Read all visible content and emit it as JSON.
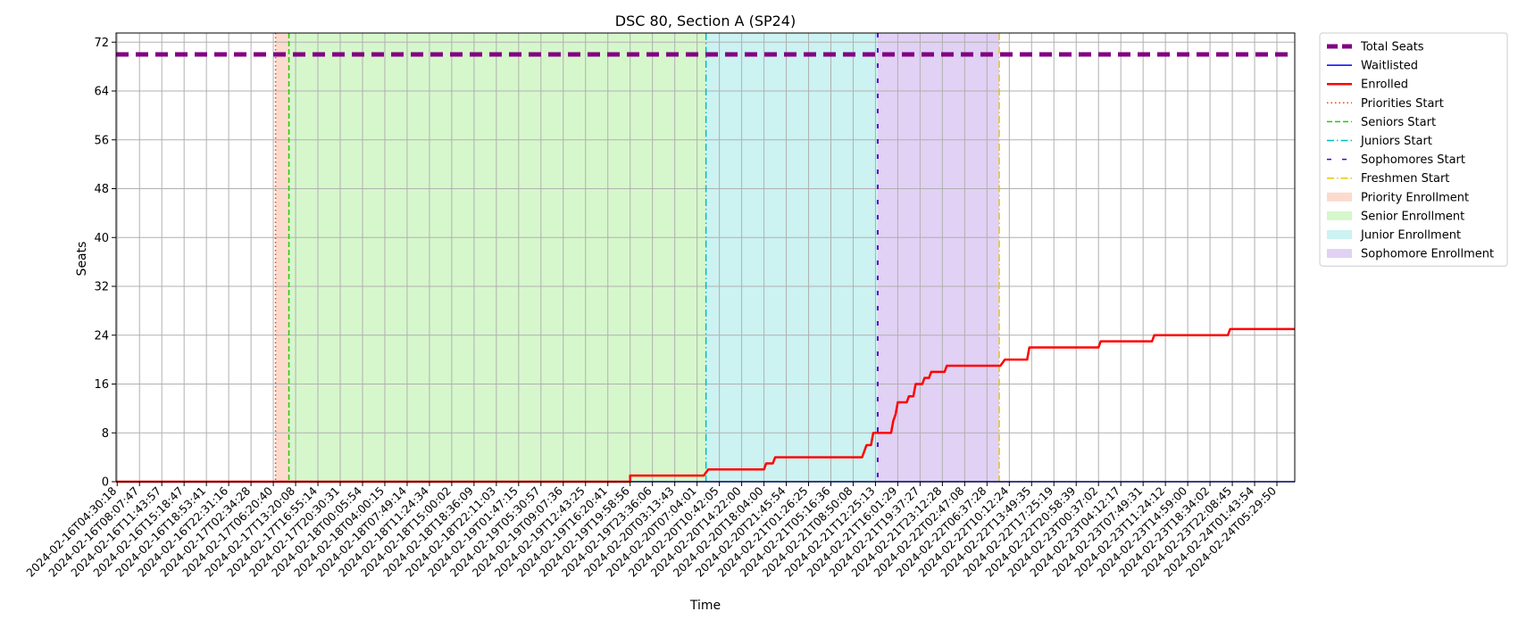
{
  "chart_data": {
    "type": "line",
    "title": "DSC 80, Section A (SP24)",
    "xlabel": "Time",
    "ylabel": "Seats",
    "ylim": [
      0,
      73.5
    ],
    "yticks": [
      0,
      8,
      16,
      24,
      32,
      40,
      48,
      56,
      64,
      72
    ],
    "grid": true,
    "legend_position": "outside-right",
    "x_tick_labels": [
      "2024-02-16T04:30:18",
      "2024-02-16T08:07:47",
      "2024-02-16T11:43:57",
      "2024-02-16T15:18:47",
      "2024-02-16T18:53:41",
      "2024-02-16T22:31:16",
      "2024-02-17T02:34:28",
      "2024-02-17T06:20:40",
      "2024-02-17T13:20:08",
      "2024-02-17T16:55:14",
      "2024-02-17T20:30:31",
      "2024-02-18T00:05:54",
      "2024-02-18T04:00:15",
      "2024-02-18T07:49:14",
      "2024-02-18T11:24:34",
      "2024-02-18T15:00:02",
      "2024-02-18T18:36:09",
      "2024-02-18T22:11:03",
      "2024-02-19T01:47:15",
      "2024-02-19T05:30:57",
      "2024-02-19T09:07:36",
      "2024-02-19T12:43:25",
      "2024-02-19T16:20:41",
      "2024-02-19T19:58:56",
      "2024-02-19T23:36:06",
      "2024-02-20T03:13:43",
      "2024-02-20T07:04:01",
      "2024-02-20T10:42:05",
      "2024-02-20T14:22:00",
      "2024-02-20T18:04:00",
      "2024-02-20T21:45:54",
      "2024-02-21T01:26:25",
      "2024-02-21T05:16:36",
      "2024-02-21T08:50:08",
      "2024-02-21T12:25:13",
      "2024-02-21T16:01:29",
      "2024-02-21T19:37:27",
      "2024-02-21T23:12:28",
      "2024-02-22T02:47:08",
      "2024-02-22T06:37:28",
      "2024-02-22T10:12:24",
      "2024-02-22T13:49:35",
      "2024-02-22T17:25:19",
      "2024-02-22T20:58:39",
      "2024-02-23T00:37:02",
      "2024-02-23T04:12:17",
      "2024-02-23T07:49:31",
      "2024-02-23T11:24:12",
      "2024-02-23T14:59:00",
      "2024-02-23T18:34:02",
      "2024-02-23T22:08:45",
      "2024-02-24T01:43:54",
      "2024-02-24T05:29:50"
    ],
    "x_extent": [
      -0.05,
      52.8
    ],
    "series": [
      {
        "name": "Total Seats",
        "color": "#800080",
        "style": "dashed-thick",
        "points": [
          [
            -0.05,
            70
          ],
          [
            52.8,
            70
          ]
        ]
      },
      {
        "name": "Waitlisted",
        "color": "#0000ff",
        "style": "solid",
        "points": [
          [
            -0.05,
            0
          ],
          [
            52.8,
            0
          ]
        ]
      },
      {
        "name": "Enrolled",
        "color": "#ff0000",
        "style": "solid",
        "points": [
          [
            -0.05,
            0
          ],
          [
            23.0,
            0
          ],
          [
            23.0,
            1
          ],
          [
            26.3,
            1
          ],
          [
            26.5,
            2
          ],
          [
            29.0,
            2
          ],
          [
            29.1,
            3
          ],
          [
            29.4,
            3
          ],
          [
            29.5,
            4
          ],
          [
            33.4,
            4
          ],
          [
            33.6,
            6
          ],
          [
            33.8,
            6
          ],
          [
            33.9,
            8
          ],
          [
            34.7,
            8
          ],
          [
            34.8,
            10
          ],
          [
            34.9,
            11
          ],
          [
            35.0,
            13
          ],
          [
            35.4,
            13
          ],
          [
            35.5,
            14
          ],
          [
            35.7,
            14
          ],
          [
            35.8,
            16
          ],
          [
            36.1,
            16
          ],
          [
            36.2,
            17
          ],
          [
            36.4,
            17
          ],
          [
            36.5,
            18
          ],
          [
            37.1,
            18
          ],
          [
            37.2,
            19
          ],
          [
            39.6,
            19
          ],
          [
            39.8,
            20
          ],
          [
            40.8,
            20
          ],
          [
            40.9,
            22
          ],
          [
            44.0,
            22
          ],
          [
            44.1,
            23
          ],
          [
            46.4,
            23
          ],
          [
            46.5,
            24
          ],
          [
            49.8,
            24
          ],
          [
            49.9,
            25
          ],
          [
            52.8,
            25
          ]
        ]
      }
    ],
    "vertical_markers": [
      {
        "name": "Priorities Start",
        "x": 7.1,
        "color": "#ff4000",
        "style": "dotted"
      },
      {
        "name": "Seniors Start",
        "x": 7.7,
        "color": "#22cc00",
        "style": "dashed"
      },
      {
        "name": "Juniors Start",
        "x": 26.4,
        "color": "#00bfbf",
        "style": "dashdot"
      },
      {
        "name": "Sophomores Start",
        "x": 34.1,
        "color": "#5000c8",
        "style": "loosely-dashed"
      },
      {
        "name": "Freshmen Start",
        "x": 39.55,
        "color": "#e6c800",
        "style": "dashdot"
      }
    ],
    "shaded_regions": [
      {
        "name": "Priority Enrollment",
        "x0": 7.1,
        "x1": 7.7,
        "color": "#f4a582"
      },
      {
        "name": "Senior Enrollment",
        "x0": 7.7,
        "x1": 26.4,
        "color": "#99ea80"
      },
      {
        "name": "Junior Enrollment",
        "x0": 26.4,
        "x1": 34.1,
        "color": "#80dede"
      },
      {
        "name": "Sophomore Enrollment",
        "x0": 34.1,
        "x1": 39.55,
        "color": "#b38be3"
      }
    ],
    "legend": [
      {
        "label": "Total Seats",
        "kind": "line",
        "color": "#800080",
        "style": "dashed-thick"
      },
      {
        "label": "Waitlisted",
        "kind": "line",
        "color": "#0000ff",
        "style": "solid"
      },
      {
        "label": "Enrolled",
        "kind": "line",
        "color": "#ff0000",
        "style": "solid-thick"
      },
      {
        "label": "Priorities Start",
        "kind": "line",
        "color": "#ff4000",
        "style": "dotted"
      },
      {
        "label": "Seniors Start",
        "kind": "line",
        "color": "#22cc00",
        "style": "dashed"
      },
      {
        "label": "Juniors Start",
        "kind": "line",
        "color": "#00bfbf",
        "style": "dashdot"
      },
      {
        "label": "Sophomores Start",
        "kind": "line",
        "color": "#5000c8",
        "style": "loosely-dashed"
      },
      {
        "label": "Freshmen Start",
        "kind": "line",
        "color": "#e6c800",
        "style": "dashdot"
      },
      {
        "label": "Priority Enrollment",
        "kind": "patch",
        "color": "#f4a582"
      },
      {
        "label": "Senior Enrollment",
        "kind": "patch",
        "color": "#99ea80"
      },
      {
        "label": "Junior Enrollment",
        "kind": "patch",
        "color": "#80dede"
      },
      {
        "label": "Sophomore Enrollment",
        "kind": "patch",
        "color": "#b38be3"
      }
    ]
  }
}
